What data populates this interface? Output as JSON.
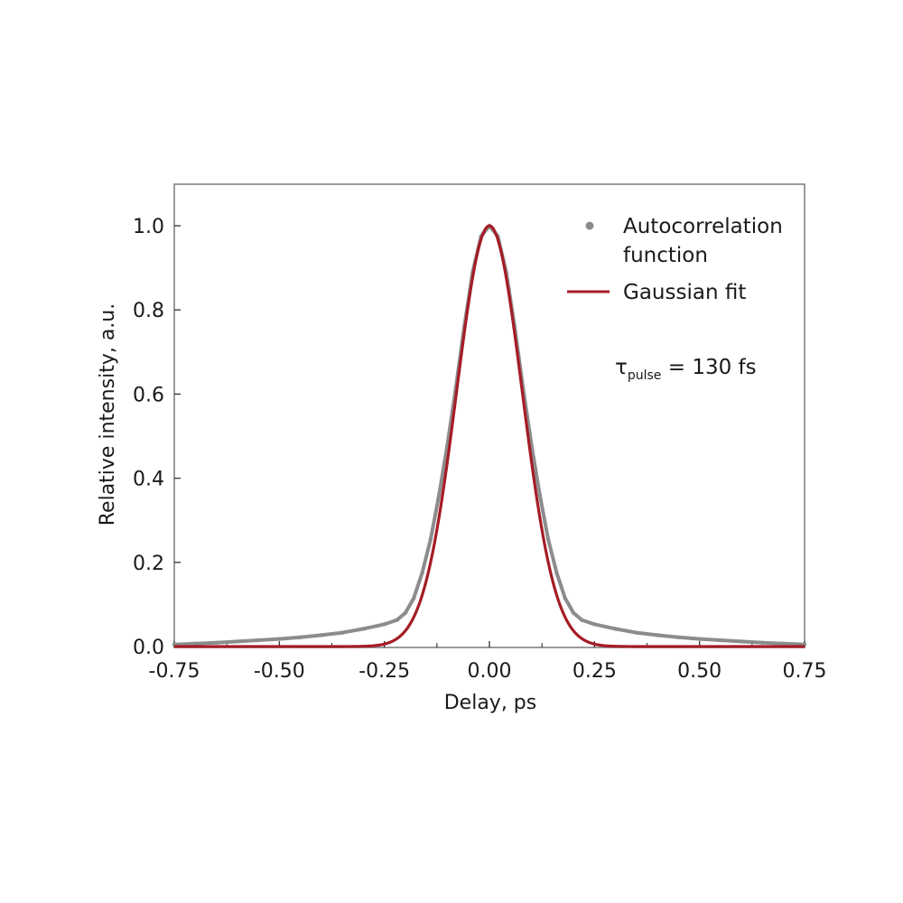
{
  "chart_data": {
    "type": "line",
    "xlabel": "Delay, ps",
    "ylabel": "Relative intensity, a.u.",
    "xlim": [
      -0.75,
      0.75
    ],
    "ylim": [
      0.0,
      1.1
    ],
    "xticks": [
      -0.75,
      -0.5,
      -0.25,
      0.0,
      0.25,
      0.5,
      0.75
    ],
    "xtick_labels": [
      "-0.75",
      "-0.50",
      "-0.25",
      "0.00",
      "0.25",
      "0.50",
      "0.75"
    ],
    "yticks": [
      0.0,
      0.2,
      0.4,
      0.6,
      0.8,
      1.0
    ],
    "ytick_labels": [
      "0.0",
      "0.2",
      "0.4",
      "0.6",
      "0.8",
      "1.0"
    ],
    "grid": false,
    "legend_position": "top-right",
    "legend": {
      "autocorrelation_line1": "Autocorrelation",
      "autocorrelation_line2": "function",
      "gaussian": "Gaussian fit"
    },
    "annotation": {
      "symbol": "τ",
      "subscript": "pulse",
      "value": " = 130 fs"
    },
    "series": [
      {
        "name": "Autocorrelation function",
        "color": "#8c8c8c",
        "x": [
          -0.75,
          -0.7,
          -0.65,
          -0.6,
          -0.55,
          -0.5,
          -0.45,
          -0.4,
          -0.35,
          -0.3,
          -0.25,
          -0.22,
          -0.2,
          -0.18,
          -0.16,
          -0.14,
          -0.12,
          -0.1,
          -0.08,
          -0.06,
          -0.04,
          -0.02,
          0.0,
          0.02,
          0.04,
          0.06,
          0.08,
          0.1,
          0.12,
          0.14,
          0.16,
          0.18,
          0.2,
          0.22,
          0.25,
          0.3,
          0.35,
          0.4,
          0.45,
          0.5,
          0.55,
          0.6,
          0.65,
          0.7,
          0.75
        ],
        "y": [
          0.005,
          0.007,
          0.009,
          0.012,
          0.015,
          0.018,
          0.022,
          0.027,
          0.033,
          0.042,
          0.053,
          0.063,
          0.08,
          0.115,
          0.175,
          0.255,
          0.36,
          0.48,
          0.615,
          0.76,
          0.89,
          0.975,
          1.0,
          0.975,
          0.89,
          0.76,
          0.615,
          0.48,
          0.36,
          0.255,
          0.175,
          0.115,
          0.08,
          0.063,
          0.053,
          0.042,
          0.033,
          0.027,
          0.022,
          0.018,
          0.015,
          0.012,
          0.009,
          0.007,
          0.005
        ]
      },
      {
        "name": "Gaussian fit",
        "color": "#a51c24",
        "function": "gaussian",
        "amplitude": 1.0,
        "center": 0.0,
        "fwhm": 0.1838
      }
    ]
  }
}
